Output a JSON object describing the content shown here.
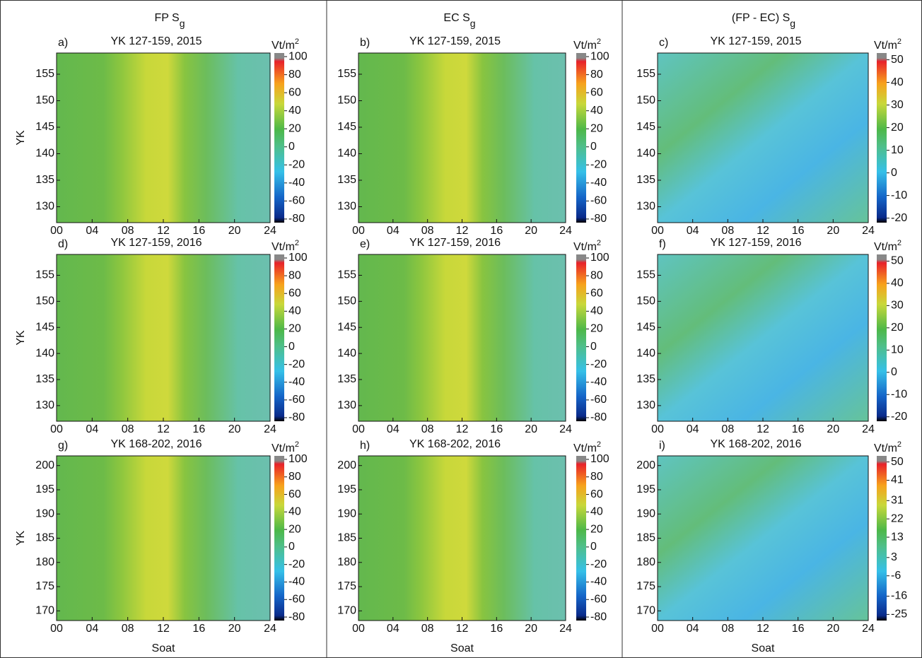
{
  "column_headers": [
    {
      "text": "FP S",
      "sub": "g"
    },
    {
      "text": "EC S",
      "sub": "g"
    },
    {
      "text": "(FP - EC) S",
      "sub": "g"
    }
  ],
  "chart_data": [
    {
      "type": "heatmap",
      "panel_label": "a)",
      "title": "YK 127-159, 2015",
      "ylabel": "YK",
      "xlim": [
        0,
        24
      ],
      "xticks": [
        {
          "value": 0,
          "label": "00"
        },
        {
          "value": 4,
          "label": "04"
        },
        {
          "value": 8,
          "label": "08"
        },
        12,
        16,
        20,
        24
      ],
      "ylim": [
        127,
        159
      ],
      "yticks": [
        130,
        135,
        140,
        145,
        150,
        155
      ],
      "colorbar": {
        "unit": "Vt/m",
        "unit_sup": "2",
        "lim": [
          -84,
          104
        ],
        "ticks": [
          100,
          80,
          60,
          40,
          20,
          0,
          -20,
          -40,
          -60,
          -80
        ]
      }
    },
    {
      "type": "heatmap",
      "panel_label": "b)",
      "title": "YK 127-159, 2015",
      "xlim": [
        0,
        24
      ],
      "xticks": [
        {
          "value": 0,
          "label": "00"
        },
        {
          "value": 4,
          "label": "04"
        },
        {
          "value": 8,
          "label": "08"
        },
        12,
        16,
        20,
        24
      ],
      "ylim": [
        127,
        159
      ],
      "yticks": [
        130,
        135,
        140,
        145,
        150,
        155
      ],
      "colorbar": {
        "unit": "Vt/m",
        "unit_sup": "2",
        "lim": [
          -84,
          104
        ],
        "ticks": [
          100,
          80,
          60,
          40,
          20,
          0,
          -20,
          -40,
          -60,
          -80
        ]
      }
    },
    {
      "type": "heatmap",
      "panel_label": "c)",
      "title": "YK 127-159, 2015",
      "xlim": [
        0,
        24
      ],
      "xticks": [
        {
          "value": 0,
          "label": "00"
        },
        {
          "value": 4,
          "label": "04"
        },
        {
          "value": 8,
          "label": "08"
        },
        12,
        16,
        20,
        24
      ],
      "ylim": [
        127,
        159
      ],
      "yticks": [
        130,
        135,
        140,
        145,
        150,
        155
      ],
      "colorbar": {
        "unit": "Vt/m",
        "unit_sup": "2",
        "lim": [
          -22,
          53
        ],
        "ticks": [
          50,
          40,
          30,
          20,
          10,
          0,
          -10,
          -20
        ]
      }
    },
    {
      "type": "heatmap",
      "panel_label": "d)",
      "title": "YK 127-159, 2016",
      "ylabel": "YK",
      "xlim": [
        0,
        24
      ],
      "xticks": [
        {
          "value": 0,
          "label": "00"
        },
        {
          "value": 4,
          "label": "04"
        },
        {
          "value": 8,
          "label": "08"
        },
        12,
        16,
        20,
        24
      ],
      "ylim": [
        127,
        159
      ],
      "yticks": [
        130,
        135,
        140,
        145,
        150,
        155
      ],
      "colorbar": {
        "unit": "Vt/m",
        "unit_sup": "2",
        "lim": [
          -84,
          104
        ],
        "ticks": [
          100,
          80,
          60,
          40,
          20,
          0,
          -20,
          -40,
          -60,
          -80
        ]
      }
    },
    {
      "type": "heatmap",
      "panel_label": "e)",
      "title": "YK 127-159, 2016",
      "xlim": [
        0,
        24
      ],
      "xticks": [
        {
          "value": 0,
          "label": "00"
        },
        {
          "value": 4,
          "label": "04"
        },
        {
          "value": 8,
          "label": "08"
        },
        12,
        16,
        20,
        24
      ],
      "ylim": [
        127,
        159
      ],
      "yticks": [
        130,
        135,
        140,
        145,
        150,
        155
      ],
      "colorbar": {
        "unit": "Vt/m",
        "unit_sup": "2",
        "lim": [
          -84,
          104
        ],
        "ticks": [
          100,
          80,
          60,
          40,
          20,
          0,
          -20,
          -40,
          -60,
          -80
        ]
      }
    },
    {
      "type": "heatmap",
      "panel_label": "f)",
      "title": "YK 127-159, 2016",
      "xlim": [
        0,
        24
      ],
      "xticks": [
        {
          "value": 0,
          "label": "00"
        },
        {
          "value": 4,
          "label": "04"
        },
        {
          "value": 8,
          "label": "08"
        },
        12,
        16,
        20,
        24
      ],
      "ylim": [
        127,
        159
      ],
      "yticks": [
        130,
        135,
        140,
        145,
        150,
        155
      ],
      "colorbar": {
        "unit": "Vt/m",
        "unit_sup": "2",
        "lim": [
          -22,
          53
        ],
        "ticks": [
          50,
          40,
          30,
          20,
          10,
          0,
          -10,
          -20
        ]
      }
    },
    {
      "type": "heatmap",
      "panel_label": "g)",
      "title": "YK 168-202, 2016",
      "ylabel": "YK",
      "xlabel": "Soat",
      "xlim": [
        0,
        24
      ],
      "xticks": [
        {
          "value": 0,
          "label": "00"
        },
        {
          "value": 4,
          "label": "04"
        },
        {
          "value": 8,
          "label": "08"
        },
        12,
        16,
        20,
        24
      ],
      "ylim": [
        168,
        202
      ],
      "yticks": [
        170,
        175,
        180,
        185,
        190,
        195,
        200
      ],
      "colorbar": {
        "unit": "Vt/m",
        "unit_sup": "2",
        "lim": [
          -84,
          104
        ],
        "ticks": [
          100,
          80,
          60,
          40,
          20,
          0,
          -20,
          -40,
          -60,
          -80
        ]
      }
    },
    {
      "type": "heatmap",
      "panel_label": "h)",
      "title": "YK 168-202, 2016",
      "xlabel": "Soat",
      "xlim": [
        0,
        24
      ],
      "xticks": [
        {
          "value": 0,
          "label": "00"
        },
        {
          "value": 4,
          "label": "04"
        },
        {
          "value": 8,
          "label": "08"
        },
        12,
        16,
        20,
        24
      ],
      "ylim": [
        168,
        202
      ],
      "yticks": [
        170,
        175,
        180,
        185,
        190,
        195,
        200
      ],
      "colorbar": {
        "unit": "Vt/m",
        "unit_sup": "2",
        "lim": [
          -84,
          104
        ],
        "ticks": [
          100,
          80,
          60,
          40,
          20,
          0,
          -20,
          -40,
          -60,
          -80
        ]
      }
    },
    {
      "type": "heatmap",
      "panel_label": "i)",
      "title": "YK 168-202, 2016",
      "xlabel": "Soat",
      "xlim": [
        0,
        24
      ],
      "xticks": [
        {
          "value": 0,
          "label": "00"
        },
        {
          "value": 4,
          "label": "04"
        },
        {
          "value": 8,
          "label": "08"
        },
        12,
        16,
        20,
        24
      ],
      "ylim": [
        168,
        202
      ],
      "yticks": [
        170,
        175,
        180,
        185,
        190,
        195,
        200
      ],
      "colorbar": {
        "unit": "Vt/m",
        "unit_sup": "2",
        "lim": [
          -28,
          53
        ],
        "ticks": [
          50,
          41,
          31,
          22,
          13,
          3,
          -6,
          -16,
          -25
        ]
      }
    }
  ]
}
